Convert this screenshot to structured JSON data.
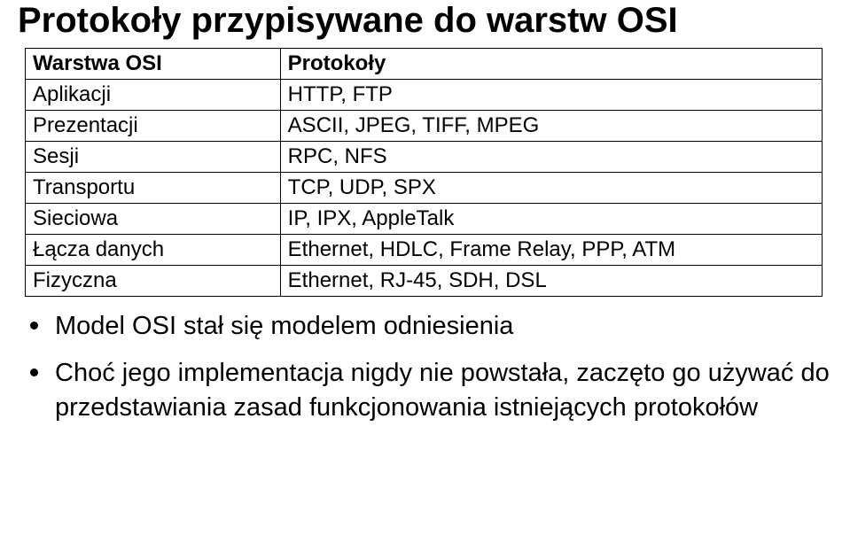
{
  "title": "Protokoły przypisywane do warstw OSI",
  "table": {
    "columns": [
      "Warstwa OSI",
      "Protokoły"
    ],
    "column_widths": [
      "32%",
      "68%"
    ],
    "rows": [
      [
        "Aplikacji",
        "HTTP, FTP"
      ],
      [
        "Prezentacji",
        "ASCII, JPEG, TIFF, MPEG"
      ],
      [
        "Sesji",
        "RPC, NFS"
      ],
      [
        "Transportu",
        "TCP, UDP, SPX"
      ],
      [
        "Sieciowa",
        "IP, IPX, AppleTalk"
      ],
      [
        "Łącza danych",
        "Ethernet, HDLC, Frame Relay, PPP, ATM"
      ],
      [
        "Fizyczna",
        "Ethernet, RJ-45, SDH, DSL"
      ]
    ],
    "border_color": "#000000",
    "header_fontweight": "bold",
    "cell_fontsize": 24,
    "font_family": "Arial"
  },
  "bullets": [
    "Model OSI stał się modelem odniesienia",
    "Choć jego implementacja nigdy nie powstała, zaczęto go używać do przedstawiania zasad funkcjonowania istniejących protokołów"
  ],
  "styling": {
    "title_fontsize": 40,
    "title_fontweight": "bold",
    "bullet_fontsize": 29,
    "bullet_marker_size": 9,
    "bullet_marker_color": "#000000",
    "background_color": "#ffffff",
    "text_color": "#000000"
  }
}
